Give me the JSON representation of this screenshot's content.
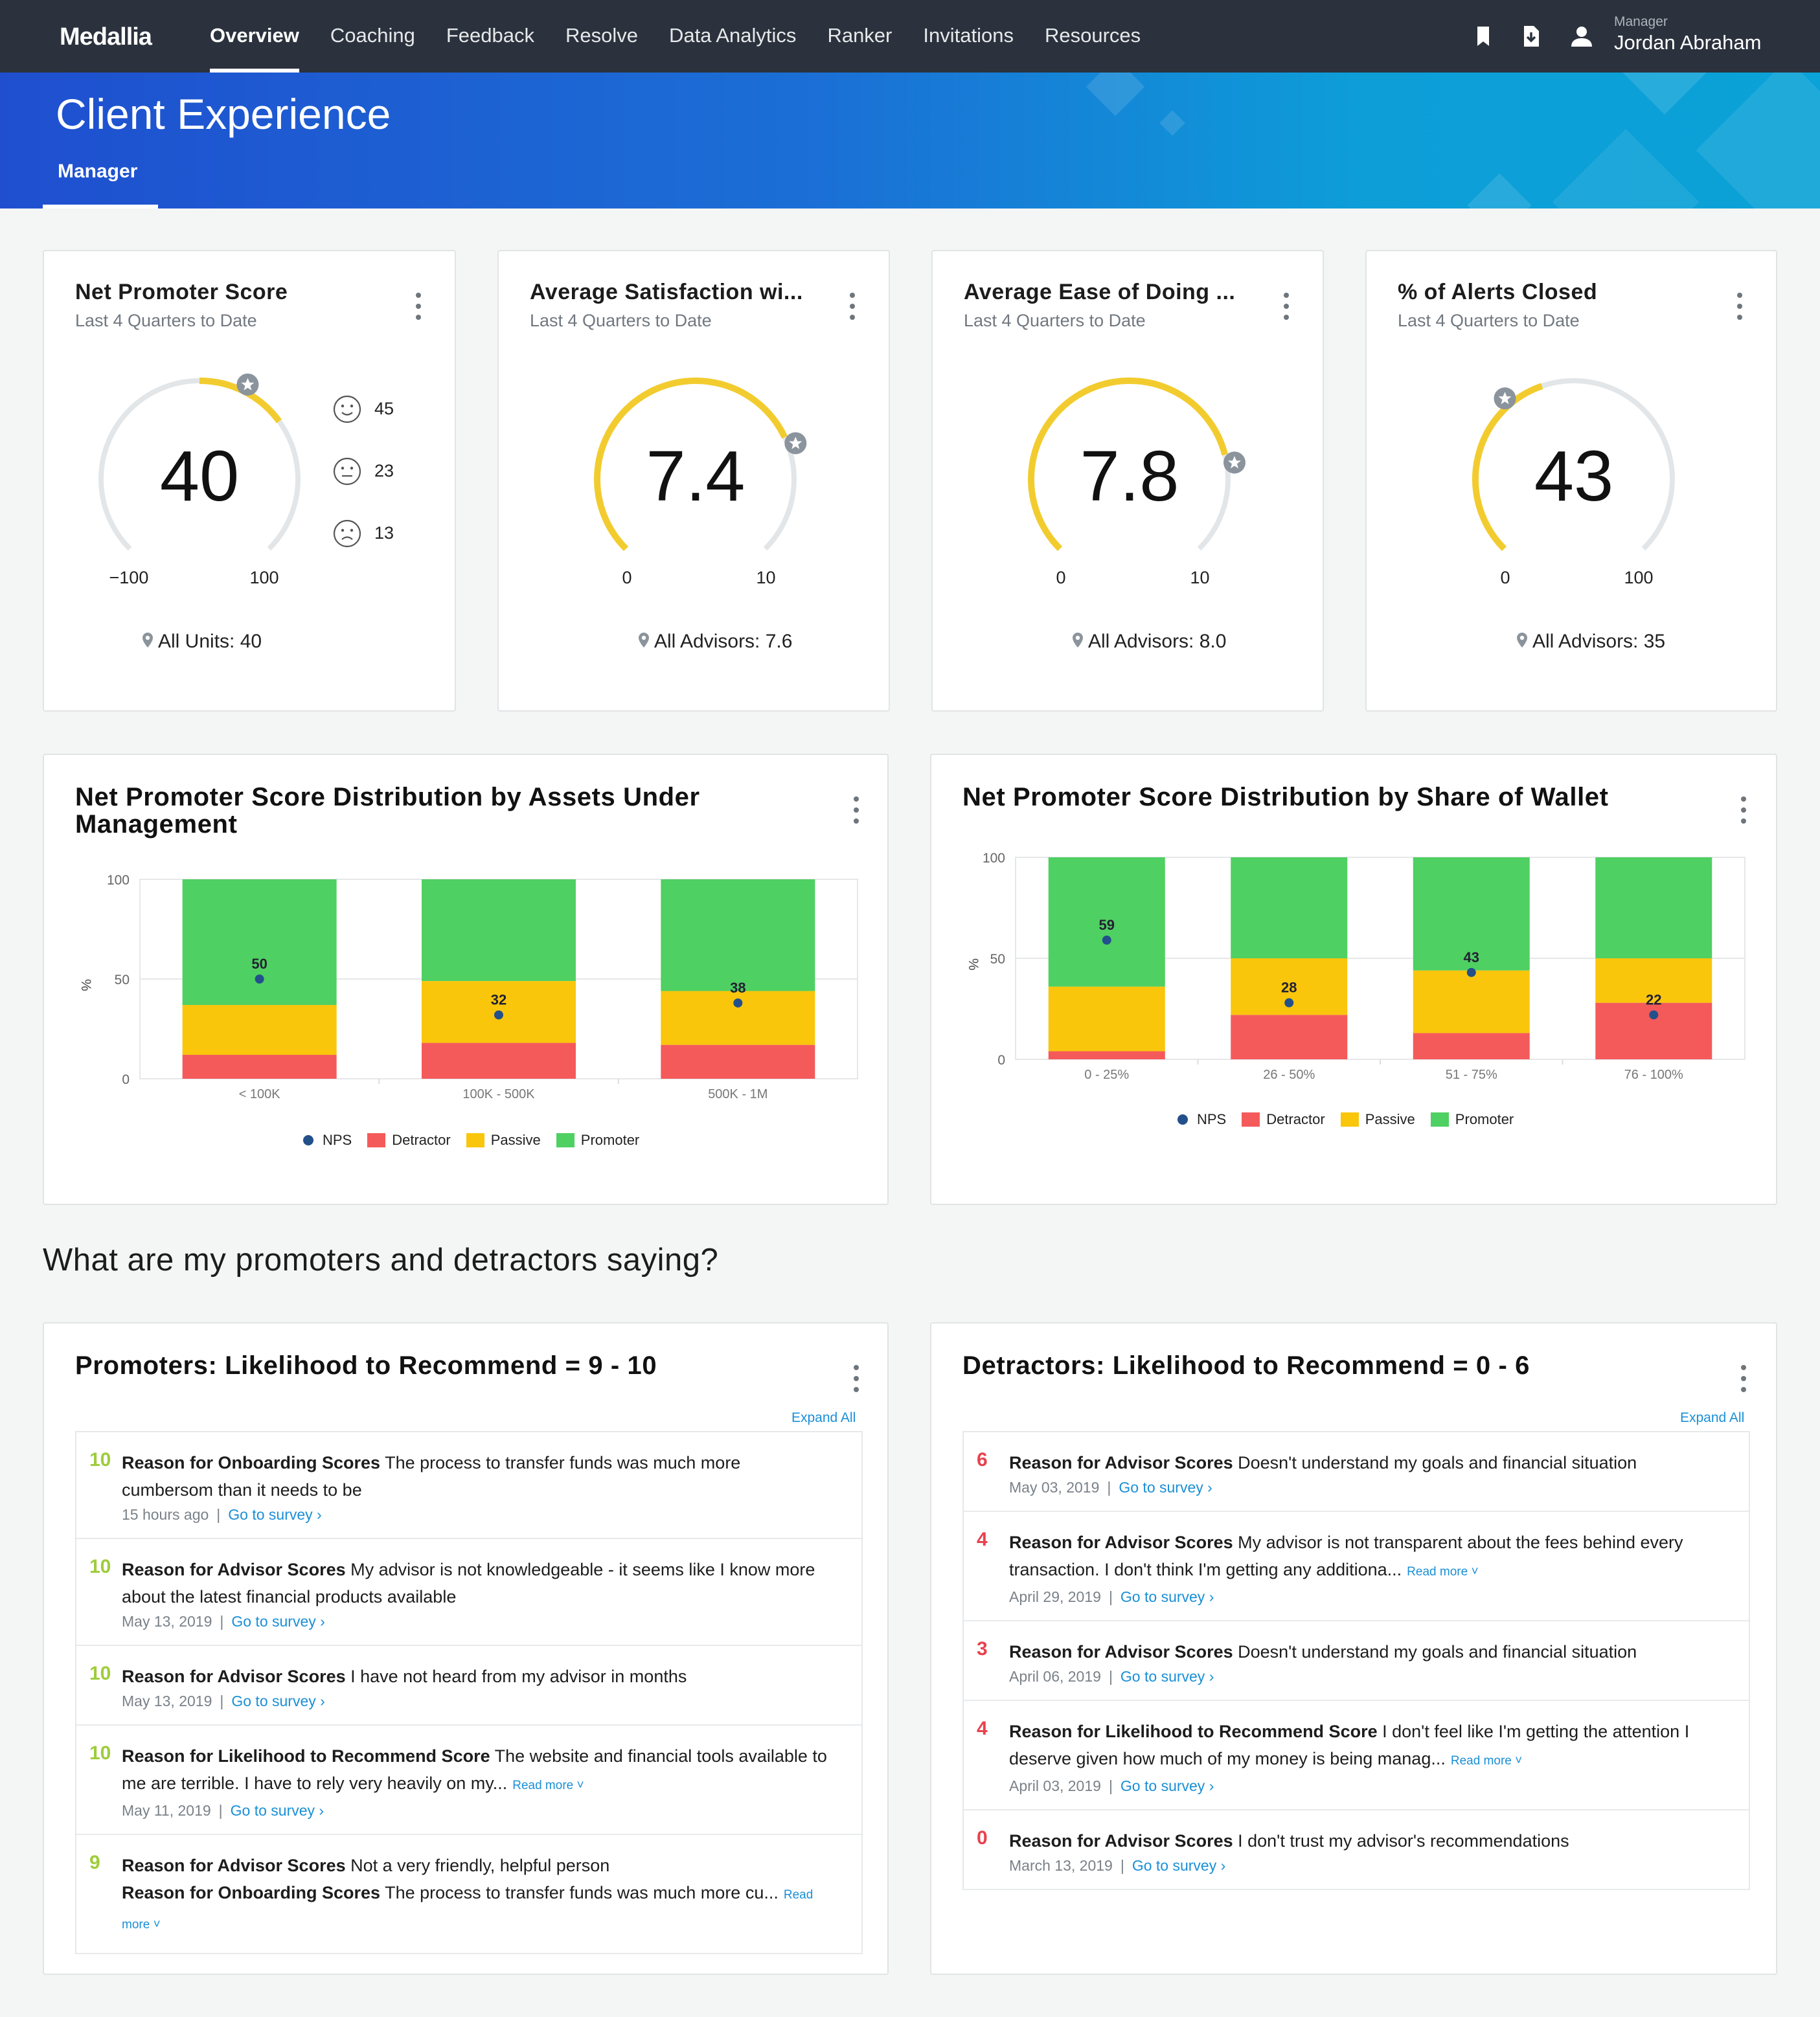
{
  "nav": {
    "brand": "Medallia",
    "items": [
      "Overview",
      "Coaching",
      "Feedback",
      "Resolve",
      "Data Analytics",
      "Ranker",
      "Invitations",
      "Resources"
    ],
    "active": "Overview",
    "user_role": "Manager",
    "user_name": "Jordan Abraham",
    "icons": [
      "bookmark-icon",
      "export-icon",
      "user-icon"
    ]
  },
  "hero": {
    "title": "Client Experience",
    "subtitle": "Manager"
  },
  "gauges": [
    {
      "title": "Net Promoter Score",
      "period": "Last 4 Quarters to Date",
      "value": "40",
      "min": "−100",
      "max": "100",
      "footer": "All Units: 40",
      "fraction": 0.7,
      "marker": 0.6,
      "faces": [
        {
          "icon": "happy-face-icon",
          "count": "45"
        },
        {
          "icon": "neutral-face-icon",
          "count": "23"
        },
        {
          "icon": "sad-face-icon",
          "count": "13"
        }
      ]
    },
    {
      "title": "Average Satisfaction wi...",
      "period": "Last 4 Quarters to Date",
      "value": "7.4",
      "min": "0",
      "max": "10",
      "footer": "All Advisors: 7.6",
      "fraction": 0.74,
      "marker": 0.76
    },
    {
      "title": "Average Ease of Doing ...",
      "period": "Last 4 Quarters to Date",
      "value": "7.8",
      "min": "0",
      "max": "10",
      "footer": "All Advisors: 8.0",
      "fraction": 0.78,
      "marker": 0.8
    },
    {
      "title": "% of Alerts Closed",
      "period": "Last 4 Quarters to Date",
      "value": "43",
      "min": "0",
      "max": "100",
      "footer": "All Advisors: 35",
      "fraction": 0.43,
      "marker": 0.35
    }
  ],
  "colors": {
    "gauge": "#f2cc2f",
    "track": "#e3e6e8",
    "promoter": "#4fd062",
    "passive": "#f9c60c",
    "detractor": "#f55a5a",
    "nps": "#23508b",
    "link": "#1a8fd6"
  },
  "chart_data": [
    {
      "type": "bar",
      "title": "Net Promoter Score Distribution by Assets Under Management",
      "categories": [
        "< 100K",
        "100K - 500K",
        "500K - 1M"
      ],
      "ylabel": "%",
      "ylim": [
        0,
        100
      ],
      "yticks": [
        "0",
        "50",
        "100"
      ],
      "series": [
        {
          "name": "Detractor",
          "values": [
            12,
            18,
            17
          ]
        },
        {
          "name": "Passive",
          "values": [
            25,
            31,
            27
          ]
        },
        {
          "name": "Promoter",
          "values": [
            63,
            51,
            56
          ]
        },
        {
          "name": "NPS",
          "values": [
            50,
            32,
            38
          ]
        }
      ],
      "legend": "bottom"
    },
    {
      "type": "bar",
      "title": "Net Promoter Score Distribution by Share of Wallet",
      "categories": [
        "0 - 25%",
        "26 - 50%",
        "51 - 75%",
        "76 - 100%"
      ],
      "ylabel": "%",
      "ylim": [
        0,
        100
      ],
      "yticks": [
        "0",
        "50",
        "100"
      ],
      "series": [
        {
          "name": "Detractor",
          "values": [
            4,
            22,
            13,
            28
          ]
        },
        {
          "name": "Passive",
          "values": [
            32,
            28,
            31,
            22
          ]
        },
        {
          "name": "Promoter",
          "values": [
            64,
            50,
            56,
            50
          ]
        },
        {
          "name": "NPS",
          "values": [
            59,
            28,
            43,
            22
          ]
        }
      ],
      "legend": "bottom"
    }
  ],
  "legend_labels": [
    "NPS",
    "Detractor",
    "Passive",
    "Promoter"
  ],
  "section_heading": "What are my promoters and detractors saying?",
  "promoters": {
    "title": "Promoters: Likelihood to Recommend = 9 - 10",
    "expand": "Expand All",
    "items": [
      {
        "score": "10",
        "lines": [
          {
            "label": "Reason for Onboarding Scores",
            "text": " The process to transfer funds was much more cumbersom than it needs to be"
          }
        ],
        "date": "15 hours ago",
        "link": "Go to survey ›"
      },
      {
        "score": "10",
        "lines": [
          {
            "label": "Reason for Advisor Scores",
            "text": " My advisor is not knowledgeable - it seems like I know more about the latest financial products available"
          }
        ],
        "date": "May 13, 2019",
        "link": "Go to survey ›"
      },
      {
        "score": "10",
        "lines": [
          {
            "label": "Reason for Advisor Scores",
            "text": " I have not heard from my advisor in months"
          }
        ],
        "date": "May 13, 2019",
        "link": "Go to survey ›"
      },
      {
        "score": "10",
        "lines": [
          {
            "label": "Reason for Likelihood to Recommend Score",
            "text": " The website and financial tools available to me are terrible. I have to rely very heavily on my..."
          }
        ],
        "readmore": "Read more ˅",
        "date": "May 11, 2019",
        "link": "Go to survey ›"
      },
      {
        "score": "9",
        "lines": [
          {
            "label": "Reason for Advisor Scores",
            "text": " Not a very friendly, helpful person"
          },
          {
            "label": "Reason for Onboarding Scores",
            "text": " The process to transfer funds was much more cu..."
          }
        ],
        "readmore": "Read more ˅"
      }
    ]
  },
  "detractors": {
    "title": "Detractors: Likelihood to Recommend = 0 - 6",
    "expand": "Expand All",
    "items": [
      {
        "score": "6",
        "lines": [
          {
            "label": "Reason for Advisor Scores",
            "text": " Doesn't understand my goals and financial situation"
          }
        ],
        "date": "May 03, 2019",
        "link": "Go to survey ›"
      },
      {
        "score": "4",
        "lines": [
          {
            "label": "Reason for Advisor Scores",
            "text": " My advisor is not transparent about the fees behind every transaction. I don't think I'm getting any additiona..."
          }
        ],
        "readmore": "Read more ˅",
        "date": "April 29, 2019",
        "link": "Go to survey ›"
      },
      {
        "score": "3",
        "lines": [
          {
            "label": "Reason for Advisor Scores",
            "text": " Doesn't understand my goals and financial situation"
          }
        ],
        "date": "April 06, 2019",
        "link": "Go to survey ›"
      },
      {
        "score": "4",
        "lines": [
          {
            "label": "Reason for Likelihood to Recommend Score",
            "text": " I don't feel like I'm getting the attention I deserve given how much of my money is being manag..."
          }
        ],
        "readmore": "Read more ˅",
        "date": "April 03, 2019",
        "link": "Go to survey ›"
      },
      {
        "score": "0",
        "lines": [
          {
            "label": "Reason for Advisor Scores",
            "text": " I don't trust my advisor's recommendations"
          }
        ],
        "date": "March 13, 2019",
        "link": "Go to survey ›"
      }
    ]
  }
}
